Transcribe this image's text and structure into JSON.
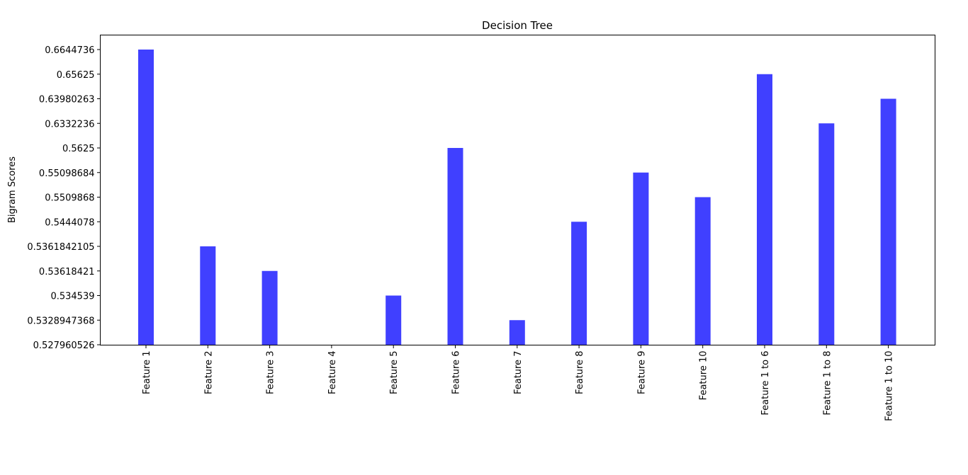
{
  "chart_data": {
    "type": "bar",
    "title": "Decision Tree",
    "xlabel": "",
    "ylabel": "Bigram Scores",
    "categories": [
      "Feature 1",
      "Feature 2",
      "Feature 3",
      "Feature 4",
      "Feature 5",
      "Feature 6",
      "Feature 7",
      "Feature 8",
      "Feature 9",
      "Feature 10",
      "Feature 1 to 6",
      "Feature 1 to 8",
      "Feature 1 to 10"
    ],
    "values": [
      "0.6644736",
      "0.5361842105",
      "0.53618421",
      "0.527960526",
      "0.534539",
      "0.5625",
      "0.5328947368",
      "0.5444078",
      "0.55098684",
      "0.5509868",
      "0.65625",
      "0.6332236",
      "0.63980263"
    ],
    "y_ticks": [
      "0.527960526",
      "0.5328947368",
      "0.534539",
      "0.53618421",
      "0.5361842105",
      "0.5444078",
      "0.5509868",
      "0.55098684",
      "0.5625",
      "0.6332236",
      "0.63980263",
      "0.65625",
      "0.6644736"
    ],
    "y_axis_categorical": true,
    "bar_color": "#4040ff",
    "grid": false,
    "legend": "none"
  }
}
